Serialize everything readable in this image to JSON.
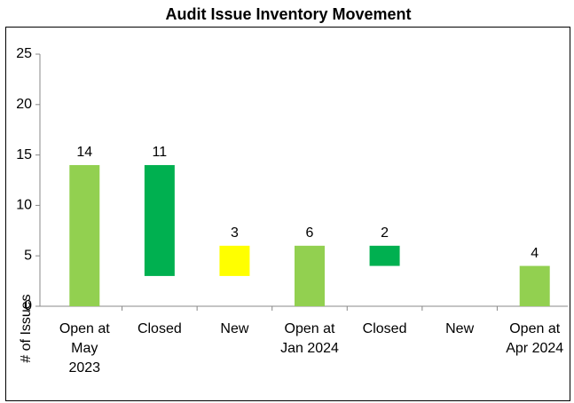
{
  "chart_data": {
    "type": "waterfall",
    "title": "Audit Issue Inventory Movement",
    "y_label": "# of Issues",
    "categories": [
      "Open at\nMay\n2023",
      "Closed",
      "New",
      "Open at\nJan 2024",
      "Closed",
      "New",
      "Open at\nApr 2024"
    ],
    "kinds": [
      "total",
      "decrease",
      "increase",
      "total",
      "decrease",
      "increase",
      "total"
    ],
    "values": [
      14,
      11,
      3,
      6,
      2,
      0,
      4
    ],
    "colors": {
      "total": "#92d050",
      "decrease": "#00b050",
      "increase": "#ffff00"
    },
    "ylim": [
      0,
      25
    ],
    "yticks": [
      0,
      5,
      10,
      15,
      20,
      25
    ],
    "grid": false
  }
}
